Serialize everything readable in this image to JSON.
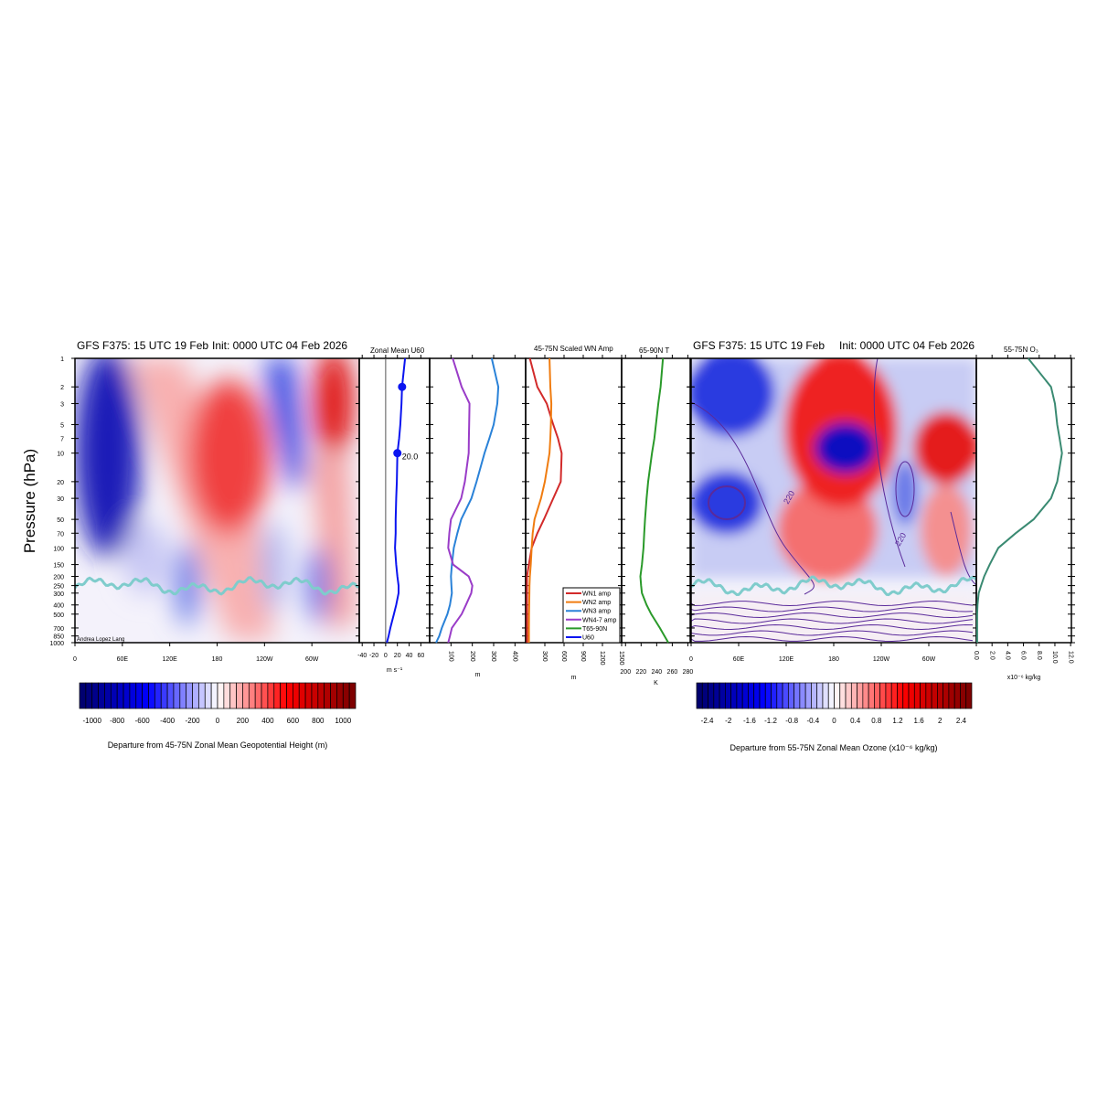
{
  "left_title": {
    "main": "GFS F375: 15 UTC 19 Feb",
    "init": "Init: 0000 UTC 04 Feb 2026"
  },
  "right_title": {
    "main": "GFS F375: 15 UTC 19 Feb",
    "init": "Init: 0000 UTC 04 Feb 2026"
  },
  "y_axis_label": "Pressure (hPa)",
  "credit": "Andrea Lopez Lang",
  "pressure_ticks": [
    1,
    2,
    3,
    5,
    7,
    10,
    20,
    30,
    50,
    70,
    100,
    150,
    200,
    250,
    300,
    400,
    500,
    700,
    850,
    1000
  ],
  "longitude_ticks": [
    "0",
    "60E",
    "120E",
    "180",
    "120W",
    "60W"
  ],
  "colors": {
    "u60": "#0a14f0",
    "wn1": "#d22a2a",
    "wn2": "#f07c10",
    "wn3": "#2a82d8",
    "wn47": "#9a3cc8",
    "t": "#2a9a2a",
    "o3": "#3a8a72",
    "tropopause": "#7fcccc",
    "contour": "#5a2a9a"
  },
  "chart_data": [
    {
      "type": "heatmap",
      "id": "height-departure",
      "xlabel": "",
      "ylabel": "Pressure (hPa)",
      "y_scale": "log",
      "ylim": [
        1000,
        1
      ],
      "colorbar": {
        "label": "Departure from 45-75N Zonal Mean Geopotential Height (m)",
        "ticks": [
          "-1000",
          "-800",
          "-600",
          "-400",
          "-200",
          "0",
          "200",
          "400",
          "600",
          "800",
          "1000"
        ],
        "range": [
          -1100,
          1100
        ],
        "colormap": "blue-white-red"
      }
    },
    {
      "type": "line",
      "id": "u60",
      "title": "Zonal Mean U60",
      "xlabel": "m s⁻¹",
      "xticks": [
        "-40",
        "-20",
        "0",
        "20",
        "40",
        "60"
      ],
      "xlim": [
        -45,
        75
      ],
      "series": [
        {
          "name": "U60",
          "values": [
            33,
            28,
            27,
            25,
            23,
            20,
            19,
            18,
            17,
            17,
            16,
            18,
            20,
            22,
            22,
            18,
            14,
            8,
            5,
            2
          ]
        }
      ],
      "markers": [
        {
          "p": 2,
          "value": 28
        },
        {
          "p": 10,
          "value": 20,
          "label": "20.0"
        }
      ]
    },
    {
      "type": "line",
      "id": "wn-amp-low",
      "xlabel": "m",
      "xticks": [
        "100",
        "200",
        "300",
        "400"
      ],
      "xlim": [
        0,
        450
      ],
      "series": [
        {
          "name": "WN3 amp",
          "values": [
            291,
            322,
            317,
            300,
            280,
            257,
            220,
            196,
            148,
            130,
            113,
            104,
            100,
            102,
            104,
            95,
            83,
            57,
            45,
            30
          ]
        },
        {
          "name": "WN4-7 amp",
          "values": [
            108,
            150,
            187,
            185,
            184,
            183,
            165,
            148,
            100,
            92,
            87,
            110,
            183,
            200,
            195,
            170,
            150,
            104,
            95,
            87
          ]
        }
      ]
    },
    {
      "type": "line",
      "id": "wn-amp-high",
      "title": "45-75N Scaled WN Amp",
      "xlabel": "m",
      "xticks": [
        "300",
        "600",
        "900",
        "1200",
        "1500"
      ],
      "xlim": [
        0,
        1500
      ],
      "series": [
        {
          "name": "WN1 amp",
          "values": [
            66,
            183,
            330,
            432,
            505,
            563,
            549,
            432,
            285,
            183,
            95,
            50,
            22,
            22,
            22,
            22,
            22,
            22,
            22,
            22
          ]
        },
        {
          "name": "WN2 amp",
          "values": [
            373,
            385,
            402,
            395,
            385,
            373,
            300,
            240,
            139,
            110,
            95,
            80,
            66,
            60,
            58,
            55,
            53,
            52,
            51,
            51
          ]
        }
      ]
    },
    {
      "type": "line",
      "id": "t65-90n",
      "title": "65-90N T",
      "xlabel": "K",
      "xticks": [
        "200",
        "220",
        "240",
        "260",
        "280"
      ],
      "xlim": [
        195,
        283
      ],
      "series": [
        {
          "name": "T65-90N",
          "values": [
            248,
            245,
            242,
            239,
            237,
            234,
            229,
            227,
            225,
            224,
            223,
            221,
            219,
            220,
            221,
            227,
            233,
            244,
            250,
            255
          ]
        }
      ]
    },
    {
      "type": "heatmap",
      "id": "ozone-departure",
      "y_scale": "log",
      "ylim": [
        1000,
        1
      ],
      "contour_label": "220",
      "colorbar": {
        "label": "Departure from 55-75N Zonal Mean Ozone (x10⁻⁶ kg/kg)",
        "ticks": [
          "-2.4",
          "-2",
          "-1.6",
          "-1.2",
          "-0.8",
          "-0.4",
          "0",
          "0.4",
          "0.8",
          "1.2",
          "1.6",
          "2",
          "2.4"
        ],
        "range": [
          -2.6,
          2.6
        ],
        "colormap": "blue-white-red"
      }
    },
    {
      "type": "line",
      "id": "o3-55-75n",
      "title": "55-75N O₃",
      "xlabel": "x10⁻⁶ kg/kg",
      "xticks": [
        "0.0",
        "2.0",
        "4.0",
        "6.0",
        "8.0",
        "10.0",
        "12.0"
      ],
      "xlim": [
        0,
        12.1
      ],
      "series": [
        {
          "name": "O3",
          "values": [
            6.6,
            9.5,
            10.0,
            10.3,
            10.6,
            10.9,
            10.3,
            9.5,
            7.3,
            5.0,
            2.8,
            1.7,
            1.0,
            0.6,
            0.3,
            0.15,
            0.1,
            0.1,
            0.1,
            0.1
          ]
        }
      ]
    }
  ],
  "legend": {
    "placement": "bottom-right",
    "entries": [
      "WN1 amp",
      "WN2 amp",
      "WN3 amp",
      "WN4-7 amp",
      "T65-90N",
      "U60"
    ]
  }
}
